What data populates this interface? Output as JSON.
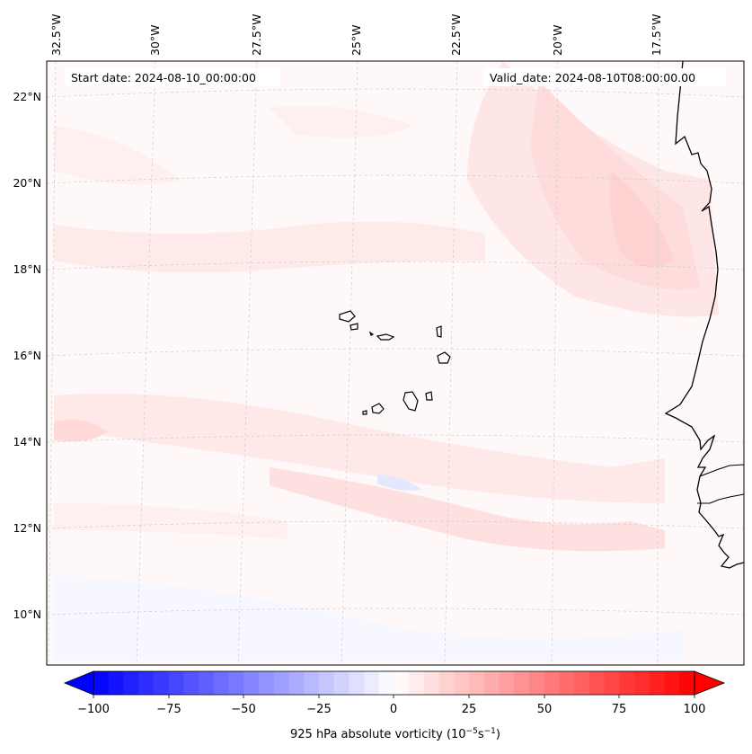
{
  "map": {
    "start_date": "Start date: 2024-08-10_00:00:00",
    "valid_date": "Valid_date: 2024-08-10T08:00:00.00",
    "lon_labels": [
      "32.5°W",
      "30°W",
      "27.5°W",
      "25°W",
      "22.5°W",
      "20°W",
      "17.5°W"
    ],
    "lat_labels": [
      "22°N",
      "20°N",
      "18°N",
      "16°N",
      "14°N",
      "12°N",
      "10°N"
    ]
  },
  "colorbar": {
    "label": "925 hPa absolute vorticity (10",
    "label_exp1": "−5",
    "label_mid": "s",
    "label_exp2": "−1",
    "label_end": ")",
    "tick_labels": [
      "−100",
      "−75",
      "−50",
      "−25",
      "0",
      "25",
      "50",
      "75",
      "100"
    ],
    "min": -100,
    "max": 100,
    "step": 5,
    "neg_color": "#0000ff",
    "pos_color": "#ff0000"
  },
  "colors": {
    "background": "#fff8f8",
    "light_red": "#ffe4e4",
    "mid_red": "#ffd4d4",
    "light_blue": "#eef0ff",
    "coastline": "#000000"
  }
}
